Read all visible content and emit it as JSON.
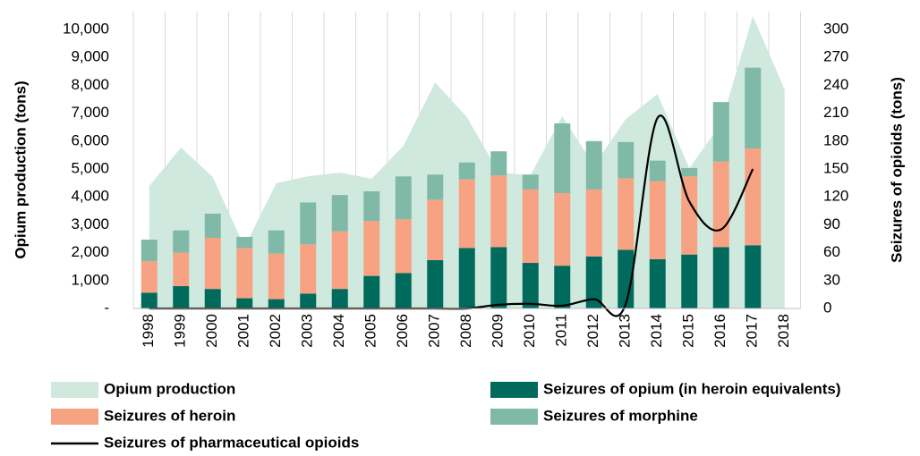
{
  "chart_data": {
    "type": "combo",
    "y_label": "Opium production (tons)",
    "y2_label": "Seizures of opioids (tons)",
    "categories": [
      "1998",
      "1999",
      "2000",
      "2001",
      "2002",
      "2003",
      "2004",
      "2005",
      "2006",
      "2007",
      "2008",
      "2009",
      "2010",
      "2011",
      "2012",
      "2013",
      "2014",
      "2015",
      "2016",
      "2017",
      "2018"
    ],
    "ylim": [
      0,
      10000
    ],
    "yticks": [
      {
        "value": 0,
        "label": "-"
      },
      {
        "value": 1000,
        "label": "1,000"
      },
      {
        "value": 2000,
        "label": "2,000"
      },
      {
        "value": 3000,
        "label": "3,000"
      },
      {
        "value": 4000,
        "label": "4,000"
      },
      {
        "value": 5000,
        "label": "5,000"
      },
      {
        "value": 6000,
        "label": "6,000"
      },
      {
        "value": 7000,
        "label": "7,000"
      },
      {
        "value": 8000,
        "label": "8,000"
      },
      {
        "value": 9000,
        "label": "9,000"
      },
      {
        "value": 10000,
        "label": "10,000"
      }
    ],
    "y2lim": [
      0,
      300
    ],
    "y2ticks": [
      0,
      30,
      60,
      90,
      120,
      150,
      180,
      210,
      240,
      270,
      300
    ],
    "series": [
      {
        "name": "Opium production",
        "type": "area",
        "color": "#d0e9de",
        "values": [
          4390,
          5770,
          4710,
          2200,
          4490,
          4740,
          4870,
          4650,
          5830,
          8100,
          6860,
          4870,
          4780,
          6890,
          5130,
          6790,
          7690,
          5030,
          6630,
          10480,
          7850
        ]
      },
      {
        "name": "Seizures of opium (in heroin equivalents)",
        "type": "bar",
        "axis": "y2",
        "color": "#006a5c",
        "values": [
          17,
          24,
          21,
          11,
          10,
          16,
          21,
          35,
          38,
          52,
          65,
          66,
          49,
          46,
          56,
          63,
          53,
          58,
          66,
          68,
          null
        ]
      },
      {
        "name": "Seizures of heroin",
        "type": "bar",
        "axis": "y2",
        "color": "#f7a283",
        "values": [
          34,
          36,
          55,
          54,
          49,
          53,
          62,
          59,
          58,
          65,
          74,
          77,
          79,
          78,
          72,
          77,
          84,
          84,
          92,
          104,
          null
        ]
      },
      {
        "name": "Seizures of morphine",
        "type": "bar",
        "axis": "y2",
        "color": "#80b9a8",
        "values": [
          23,
          24,
          26,
          12,
          25,
          45,
          39,
          32,
          46,
          27,
          18,
          26,
          16,
          75,
          52,
          39,
          22,
          9,
          64,
          87,
          null
        ]
      },
      {
        "name": "Seizures of pharmaceutical opioids",
        "type": "line",
        "axis": "y2",
        "color": "#000000",
        "values": [
          0,
          0,
          0,
          0,
          0,
          0,
          0,
          0,
          0,
          0,
          0,
          4,
          5,
          3,
          10,
          5,
          205,
          115,
          85,
          150,
          null
        ]
      }
    ]
  }
}
